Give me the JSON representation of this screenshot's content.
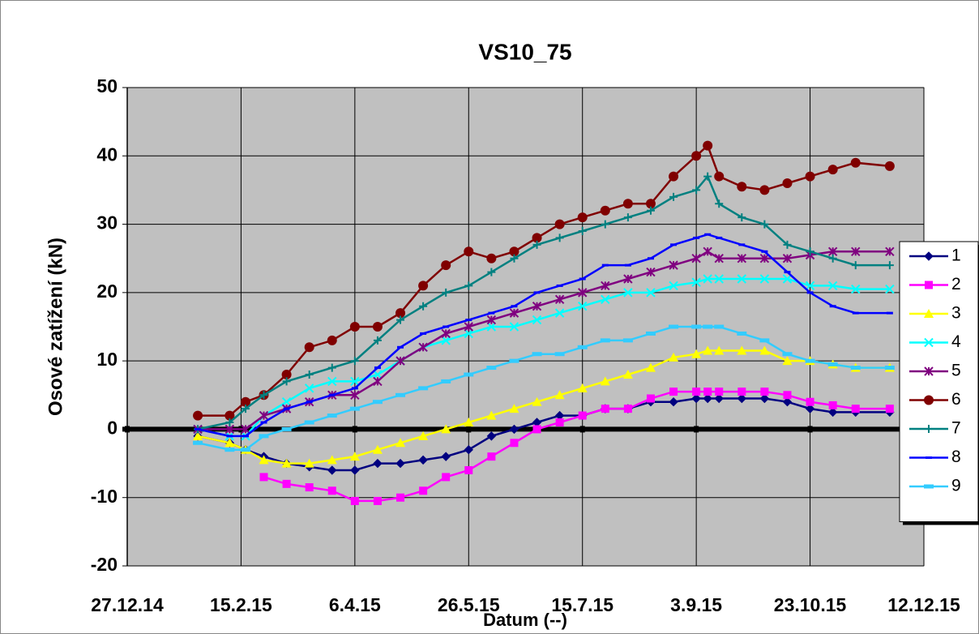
{
  "chart_data": {
    "type": "line",
    "title": "VS10_75",
    "x_label": "Datum (--)",
    "y_label": "Osové zatížení (kN)",
    "x": [
      "2015-01-27",
      "2015-02-10",
      "2015-02-17",
      "2015-02-25",
      "2015-03-07",
      "2015-03-17",
      "2015-03-27",
      "2015-04-06",
      "2015-04-16",
      "2015-04-26",
      "2015-05-06",
      "2015-05-16",
      "2015-05-26",
      "2015-06-05",
      "2015-06-15",
      "2015-06-25",
      "2015-07-05",
      "2015-07-15",
      "2015-07-25",
      "2015-08-04",
      "2015-08-14",
      "2015-08-24",
      "2015-09-03",
      "2015-09-08",
      "2015-09-13",
      "2015-09-23",
      "2015-10-03",
      "2015-10-13",
      "2015-10-23",
      "2015-11-02",
      "2015-11-12",
      "2015-11-27"
    ],
    "xlim": [
      "2014-12-27",
      "2015-12-12"
    ],
    "xticks": [
      {
        "value": "2014-12-27",
        "label": "27.12.14"
      },
      {
        "value": "2015-02-15",
        "label": "15.2.15"
      },
      {
        "value": "2015-04-06",
        "label": "6.4.15"
      },
      {
        "value": "2015-05-26",
        "label": "26.5.15"
      },
      {
        "value": "2015-07-15",
        "label": "15.7.15"
      },
      {
        "value": "2015-09-03",
        "label": "3.9.15"
      },
      {
        "value": "2015-10-23",
        "label": "23.10.15"
      },
      {
        "value": "2015-12-12",
        "label": "12.12.15"
      }
    ],
    "ylim": [
      -20,
      50
    ],
    "yticks": [
      -20,
      -10,
      0,
      10,
      20,
      30,
      40,
      50
    ],
    "grid": true,
    "plot_background": "#c0c0c0",
    "legend": "right",
    "series": [
      {
        "name": "1",
        "color": "#000080",
        "marker": "diamond",
        "values": [
          -1,
          -2,
          -3,
          -4,
          -5,
          -5.5,
          -6,
          -6,
          -5,
          -5,
          -4.5,
          -4,
          -3,
          -1,
          0,
          1,
          2,
          2,
          3,
          3,
          4,
          4,
          4.5,
          4.5,
          4.5,
          4.5,
          4.5,
          4,
          3,
          2.5,
          2.5,
          2.5
        ]
      },
      {
        "name": "2",
        "color": "#ff00ff",
        "marker": "square",
        "values": [
          null,
          null,
          null,
          -7,
          -8,
          -8.5,
          -9,
          -10.5,
          -10.5,
          -10,
          -9,
          -7,
          -6,
          -4,
          -2,
          0,
          1,
          2,
          3,
          3,
          4.5,
          5.5,
          5.5,
          5.5,
          5.5,
          5.5,
          5.5,
          5,
          4,
          3.5,
          3,
          3
        ]
      },
      {
        "name": "3",
        "color": "#ffff00",
        "marker": "triangle",
        "values": [
          -1,
          -2,
          -3,
          -4.5,
          -5,
          -5,
          -4.5,
          -4,
          -3,
          -2,
          -1,
          0,
          1,
          2,
          3,
          4,
          5,
          6,
          7,
          8,
          9,
          10.5,
          11,
          11.5,
          11.5,
          11.5,
          11.5,
          10,
          10,
          9.5,
          9,
          9
        ]
      },
      {
        "name": "4",
        "color": "#00ffff",
        "marker": "x",
        "values": [
          0,
          -1,
          -1,
          2,
          4,
          6,
          7,
          7,
          8,
          10,
          12,
          13,
          14,
          15,
          15,
          16,
          17,
          18,
          19,
          20,
          20,
          21,
          21.5,
          22,
          22,
          22,
          22,
          22,
          21,
          21,
          20.5,
          20.5
        ]
      },
      {
        "name": "5",
        "color": "#800080",
        "marker": "star",
        "values": [
          0,
          0,
          0,
          2,
          3,
          4,
          5,
          5,
          7,
          10,
          12,
          14,
          15,
          16,
          17,
          18,
          19,
          20,
          21,
          22,
          23,
          24,
          25,
          26,
          25,
          25,
          25,
          25,
          25.5,
          26,
          26,
          26
        ]
      },
      {
        "name": "6",
        "color": "#800000",
        "marker": "circle",
        "values": [
          2,
          2,
          4,
          5,
          8,
          12,
          13,
          15,
          15,
          17,
          21,
          24,
          26,
          25,
          26,
          28,
          30,
          31,
          32,
          33,
          33,
          37,
          40,
          41.5,
          37,
          35.5,
          35,
          36,
          37,
          38,
          39,
          38.5
        ]
      },
      {
        "name": "7",
        "color": "#008080",
        "marker": "plus",
        "values": [
          0,
          1,
          3,
          5,
          7,
          8,
          9,
          10,
          13,
          16,
          18,
          20,
          21,
          23,
          25,
          27,
          28,
          29,
          30,
          31,
          32,
          34,
          35,
          37,
          33,
          31,
          30,
          27,
          26,
          25,
          24,
          24
        ]
      },
      {
        "name": "8",
        "color": "#0000ff",
        "marker": "dash",
        "values": [
          0,
          -1,
          -1,
          1,
          3,
          4,
          5,
          6,
          9,
          12,
          14,
          15,
          16,
          17,
          18,
          20,
          21,
          22,
          24,
          24,
          25,
          27,
          28,
          28.5,
          28,
          27,
          26,
          23,
          20,
          18,
          17,
          17
        ]
      },
      {
        "name": "9",
        "color": "#33ccff",
        "marker": "bar",
        "values": [
          -2,
          -3,
          -3,
          -1,
          0,
          1,
          2,
          3,
          4,
          5,
          6,
          7,
          8,
          9,
          10,
          11,
          11,
          12,
          13,
          13,
          14,
          15,
          15,
          15,
          15,
          14,
          13,
          11,
          10,
          9.5,
          9,
          9
        ]
      }
    ]
  }
}
